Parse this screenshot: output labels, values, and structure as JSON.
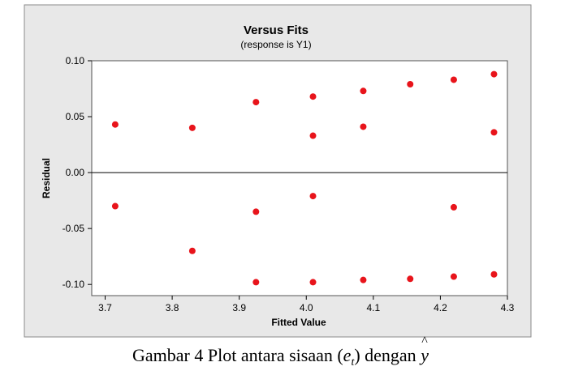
{
  "chart_data": {
    "type": "scatter",
    "title": "Versus Fits",
    "subtitle": "(response is Y1)",
    "xlabel": "Fitted Value",
    "ylabel": "Residual",
    "xlim": [
      3.68,
      4.3
    ],
    "ylim": [
      -0.11,
      0.1
    ],
    "xticks": [
      3.7,
      3.8,
      3.9,
      4.0,
      4.1,
      4.2,
      4.3
    ],
    "xtick_labels": [
      "3.7",
      "3.8",
      "3.9",
      "4.0",
      "4.1",
      "4.2",
      "4.3"
    ],
    "yticks": [
      0.1,
      0.05,
      0.0,
      -0.05,
      -0.1
    ],
    "ytick_labels": [
      "0.10",
      "0.05",
      "0.00",
      "-0.05",
      "-0.10"
    ],
    "reference_line_y": 0,
    "grid": false,
    "point_color": "#e8141b",
    "points": [
      {
        "x": 3.715,
        "y": 0.043
      },
      {
        "x": 3.715,
        "y": -0.03
      },
      {
        "x": 3.83,
        "y": 0.04
      },
      {
        "x": 3.83,
        "y": -0.07
      },
      {
        "x": 3.925,
        "y": 0.063
      },
      {
        "x": 3.925,
        "y": -0.035
      },
      {
        "x": 3.925,
        "y": -0.098
      },
      {
        "x": 4.01,
        "y": 0.068
      },
      {
        "x": 4.01,
        "y": 0.033
      },
      {
        "x": 4.01,
        "y": -0.021
      },
      {
        "x": 4.01,
        "y": -0.098
      },
      {
        "x": 4.085,
        "y": 0.073
      },
      {
        "x": 4.085,
        "y": 0.041
      },
      {
        "x": 4.085,
        "y": -0.096
      },
      {
        "x": 4.155,
        "y": 0.079
      },
      {
        "x": 4.155,
        "y": -0.095
      },
      {
        "x": 4.22,
        "y": 0.083
      },
      {
        "x": 4.22,
        "y": -0.031
      },
      {
        "x": 4.22,
        "y": -0.093
      },
      {
        "x": 4.28,
        "y": 0.088
      },
      {
        "x": 4.28,
        "y": 0.036
      },
      {
        "x": 4.28,
        "y": -0.091
      }
    ]
  },
  "caption": {
    "prefix": "Gambar 4 Plot antara sisaan",
    "e": "e",
    "t": "t",
    "middle": "dengan",
    "yhat": "y"
  },
  "colors": {
    "outer_background": "#e8e8e8",
    "plot_background": "#ffffff",
    "points": "#e8141b"
  }
}
